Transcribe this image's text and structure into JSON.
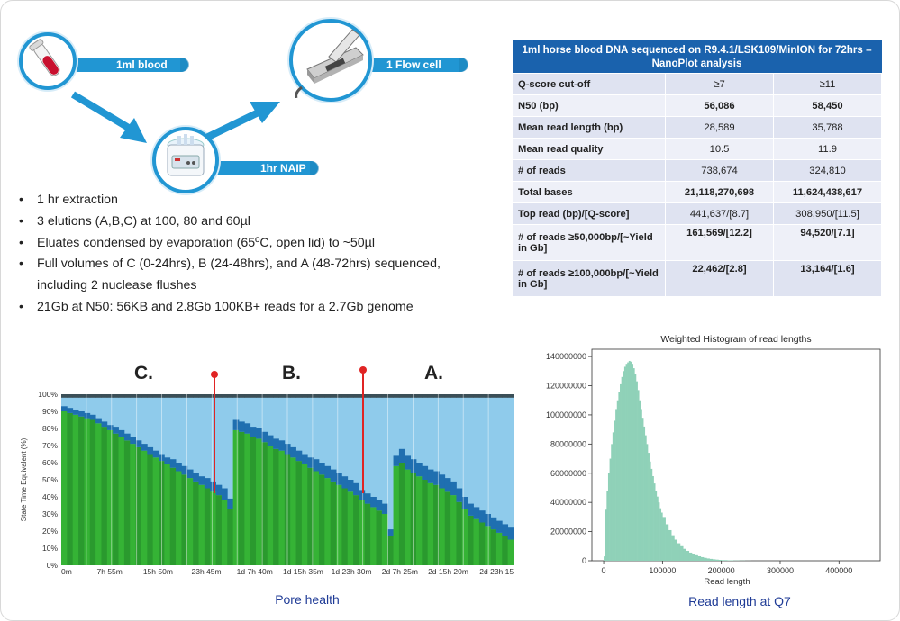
{
  "workflow": {
    "step1": "1ml blood",
    "step2": "1 Flow cell",
    "step3": "1hr NAIP",
    "colors": {
      "arrow": "#2196d3",
      "arrow_dark": "#1a7fb5"
    }
  },
  "bullets": [
    "1 hr extraction",
    "3 elutions (A,B,C) at 100, 80 and 60µl",
    "Eluates condensed by evaporation (65ºC, open lid) to ~50µl",
    "Full volumes of C (0-24hrs), B (24-48hrs), and A (48-72hrs) sequenced,",
    "including 2 nuclease flushes",
    "21Gb at N50: 56KB and 2.8Gb 100KB+ reads for a 2.7Gb genome"
  ],
  "table": {
    "title": "1ml horse blood DNA sequenced on R9.4.1/LSK109/MinION for 72hrs – NanoPlot analysis",
    "rows": [
      {
        "label": "Q-score cut-off",
        "v1": "≥7",
        "v2": "≥11",
        "bold": false
      },
      {
        "label": "N50 (bp)",
        "v1": "56,086",
        "v2": "58,450",
        "bold": true
      },
      {
        "label": "Mean read length (bp)",
        "v1": "28,589",
        "v2": "35,788",
        "bold": false
      },
      {
        "label": "Mean read quality",
        "v1": "10.5",
        "v2": "11.9",
        "bold": false
      },
      {
        "label": "# of reads",
        "v1": "738,674",
        "v2": "324,810",
        "bold": false
      },
      {
        "label": "Total bases",
        "v1": "21,118,270,698",
        "v2": "11,624,438,617",
        "bold": true
      },
      {
        "label": "Top read (bp)/[Q-score]",
        "v1": "441,637/[8.7]",
        "v2": "308,950/[11.5]",
        "bold": false
      },
      {
        "label": "# of reads ≥50,000bp/[~Yield in Gb]",
        "v1": "161,569/[12.2]",
        "v2": "94,520/[7.1]",
        "bold": true
      },
      {
        "label": "# of reads ≥100,000bp/[~Yield in Gb]",
        "v1": "22,462/[2.8]",
        "v2": "13,164/[1.6]",
        "bold": true
      }
    ],
    "colors": {
      "header": "#1a62ad",
      "row_a": "#dfe3f1",
      "row_b": "#eef0f8"
    }
  },
  "chart_data": [
    {
      "type": "bar",
      "caption": "Pore health",
      "ylabel": "State Time Equivalent (%)",
      "yticks": [
        "0%",
        "10%",
        "20%",
        "30%",
        "40%",
        "50%",
        "60%",
        "70%",
        "80%",
        "90%",
        "100%"
      ],
      "xticks": [
        "0m",
        "7h 55m",
        "15h 50m",
        "23h 45m",
        "1d 7h 40m",
        "1d 15h 35m",
        "1d 23h 30m",
        "2d 7h 25m",
        "2d 15h 20m",
        "2d 23h 15"
      ],
      "phases": [
        "C.",
        "B.",
        "A."
      ],
      "series_colors": {
        "green_light": "#35b335",
        "green_dark": "#2a9a2e",
        "blue": "#1f6fb0",
        "light_blue": "#8fcbeb",
        "dark": "#3b4f57"
      },
      "ylim": [
        0,
        100
      ],
      "green": [
        90,
        89,
        88,
        87,
        86,
        85,
        83,
        81,
        79,
        77,
        75,
        73,
        71,
        69,
        67,
        65,
        63,
        61,
        59,
        57,
        55,
        53,
        51,
        49,
        47,
        45,
        43,
        41,
        38,
        33,
        79,
        78,
        77,
        75,
        74,
        72,
        70,
        68,
        67,
        65,
        63,
        61,
        59,
        57,
        55,
        53,
        51,
        49,
        47,
        45,
        43,
        41,
        38,
        36,
        34,
        32,
        30,
        17,
        58,
        60,
        56,
        54,
        52,
        50,
        48,
        47,
        45,
        43,
        41,
        37,
        33,
        29,
        27,
        25,
        23,
        21,
        19,
        17,
        15
      ],
      "blue": [
        3,
        3,
        3,
        3,
        3,
        3,
        3,
        3,
        3,
        4,
        4,
        4,
        4,
        4,
        4,
        4,
        4,
        4,
        4,
        5,
        5,
        5,
        5,
        5,
        5,
        6,
        6,
        6,
        7,
        6,
        6,
        6,
        6,
        6,
        6,
        6,
        6,
        6,
        6,
        6,
        6,
        6,
        6,
        6,
        7,
        7,
        7,
        7,
        7,
        7,
        7,
        7,
        6,
        6,
        6,
        6,
        6,
        4,
        6,
        8,
        8,
        8,
        8,
        8,
        8,
        8,
        8,
        8,
        8,
        8,
        7,
        7,
        7,
        7,
        7,
        7,
        7,
        7,
        7
      ],
      "dark": [
        2,
        2,
        2,
        2,
        2,
        2,
        2,
        2,
        2,
        2,
        2,
        2,
        2,
        2,
        2,
        2,
        2,
        2,
        2,
        2,
        2,
        2,
        2,
        2,
        2,
        2,
        2,
        2,
        2,
        2,
        2,
        2,
        2,
        2,
        2,
        2,
        2,
        2,
        2,
        2,
        2,
        2,
        2,
        2,
        2,
        2,
        2,
        2,
        2,
        2,
        2,
        2,
        2,
        2,
        2,
        2,
        2,
        2,
        2,
        2,
        2,
        2,
        2,
        2,
        2,
        2,
        2,
        2,
        2,
        2,
        2,
        2,
        2,
        2,
        2,
        2,
        2,
        2,
        2
      ]
    },
    {
      "type": "histogram",
      "title": "Weighted Histogram of read lengths",
      "xlabel": "Read length",
      "caption": "Read length at Q7",
      "xlim": [
        -20000,
        470000
      ],
      "ylim": [
        0,
        145000000
      ],
      "xticks": [
        0,
        100000,
        200000,
        300000,
        400000
      ],
      "yticks": [
        0,
        20000000,
        40000000,
        60000000,
        80000000,
        100000000,
        120000000,
        140000000
      ],
      "color": "#8fd1b8",
      "x": [
        0,
        2500,
        5000,
        7500,
        10000,
        12500,
        15000,
        17500,
        20000,
        22500,
        25000,
        27500,
        30000,
        32500,
        35000,
        37500,
        40000,
        42500,
        45000,
        47500,
        50000,
        52500,
        55000,
        57500,
        60000,
        62500,
        65000,
        67500,
        70000,
        72500,
        75000,
        77500,
        80000,
        82500,
        85000,
        87500,
        90000,
        92500,
        95000,
        97500,
        100000,
        105000,
        110000,
        115000,
        120000,
        125000,
        130000,
        135000,
        140000,
        145000,
        150000,
        155000,
        160000,
        165000,
        170000,
        175000,
        180000,
        185000,
        190000,
        195000,
        200000,
        210000,
        220000,
        230000,
        240000,
        250000
      ],
      "y": [
        3000000,
        35000000,
        48000000,
        60000000,
        70000000,
        80000000,
        88000000,
        96000000,
        104000000,
        110000000,
        116000000,
        121000000,
        126000000,
        130000000,
        133000000,
        135000000,
        136000000,
        137000000,
        136500000,
        135000000,
        132000000,
        128000000,
        123000000,
        117000000,
        110000000,
        104000000,
        98000000,
        92000000,
        86000000,
        80000000,
        74000000,
        68000000,
        63000000,
        58000000,
        53000000,
        48000000,
        44000000,
        40000000,
        36000000,
        33000000,
        30000000,
        25000000,
        21000000,
        17500000,
        14500000,
        12000000,
        10000000,
        8200000,
        6800000,
        5600000,
        4600000,
        3800000,
        3100000,
        2500000,
        2000000,
        1600000,
        1300000,
        1000000,
        800000,
        600000,
        450000,
        300000,
        200000,
        120000,
        60000,
        0
      ]
    }
  ]
}
